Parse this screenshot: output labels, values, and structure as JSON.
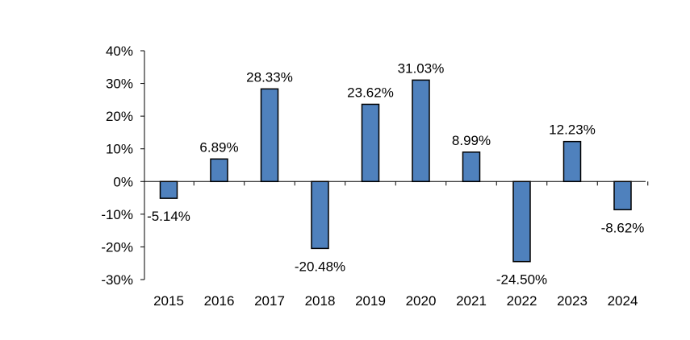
{
  "chart_data": {
    "type": "bar",
    "categories": [
      "2015",
      "2016",
      "2017",
      "2018",
      "2019",
      "2020",
      "2021",
      "2022",
      "2023",
      "2024"
    ],
    "values": [
      -5.14,
      6.89,
      28.33,
      -20.48,
      23.62,
      31.03,
      8.99,
      -24.5,
      12.23,
      -8.62
    ],
    "data_labels": [
      "-5.14%",
      "6.89%",
      "28.33%",
      "-20.48%",
      "23.62%",
      "31.03%",
      "8.99%",
      "-24.50%",
      "12.23%",
      "-8.62%"
    ],
    "ylim": [
      -30,
      40
    ],
    "yticks": [
      40,
      30,
      20,
      10,
      0,
      -10,
      -20,
      -30
    ],
    "ytick_labels": [
      "40%",
      "30%",
      "20%",
      "10%",
      "0%",
      "-10%",
      "-20%",
      "-30%"
    ],
    "title": "",
    "xlabel": "",
    "ylabel": "",
    "grid": false,
    "bar_color": "#4f81bd",
    "bar_edge_color": "#000000"
  }
}
